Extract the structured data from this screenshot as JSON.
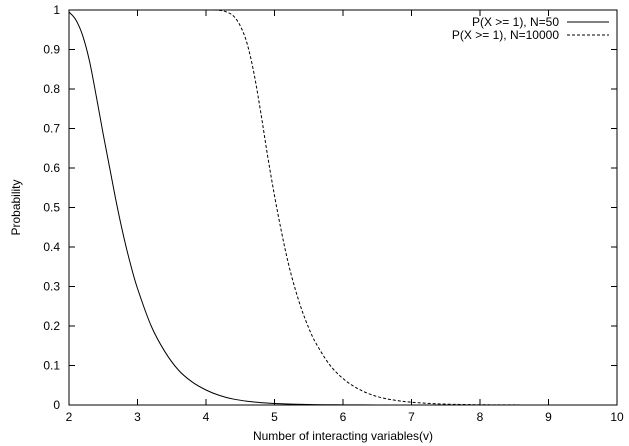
{
  "chart_data": {
    "type": "line",
    "title": "",
    "xlabel": "Number of interacting variables(v)",
    "ylabel": "Probability",
    "xlim": [
      2,
      10
    ],
    "ylim": [
      0,
      1
    ],
    "xticks": [
      2,
      3,
      4,
      5,
      6,
      7,
      8,
      9,
      10
    ],
    "yticks": [
      0,
      0.1,
      0.2,
      0.3,
      0.4,
      0.5,
      0.6,
      0.7,
      0.8,
      0.9,
      1
    ],
    "grid": false,
    "legend_position": "top-right",
    "series": [
      {
        "name": "P(X >= 1), N=50",
        "style": "solid",
        "color": "#000000",
        "x": [
          2.0,
          2.1,
          2.2,
          2.3,
          2.4,
          2.5,
          2.6,
          2.7,
          2.8,
          2.9,
          3.0,
          3.2,
          3.4,
          3.6,
          3.8,
          4.0,
          4.2,
          4.4,
          4.6,
          4.8,
          5.0,
          5.5,
          6.0,
          6.5,
          7.0,
          8.0,
          9.0,
          10.0
        ],
        "y": [
          0.995,
          0.975,
          0.935,
          0.87,
          0.78,
          0.685,
          0.595,
          0.505,
          0.425,
          0.355,
          0.295,
          0.2,
          0.135,
          0.088,
          0.058,
          0.038,
          0.024,
          0.015,
          0.0095,
          0.006,
          0.0038,
          0.0012,
          0.0004,
          0.0001,
          0.0,
          0.0,
          0.0,
          0.0
        ]
      },
      {
        "name": "P(X >= 1), N=10000",
        "style": "dashed",
        "color": "#000000",
        "x": [
          2.0,
          3.0,
          4.0,
          4.2,
          4.3,
          4.4,
          4.5,
          4.6,
          4.7,
          4.8,
          4.9,
          5.0,
          5.1,
          5.2,
          5.3,
          5.4,
          5.5,
          5.6,
          5.8,
          6.0,
          6.2,
          6.4,
          6.6,
          6.8,
          7.0,
          7.4,
          7.8,
          8.2,
          9.0,
          10.0
        ],
        "y": [
          1.0,
          1.0,
          1.0,
          0.999,
          0.995,
          0.985,
          0.96,
          0.915,
          0.84,
          0.74,
          0.63,
          0.53,
          0.44,
          0.36,
          0.295,
          0.24,
          0.195,
          0.158,
          0.103,
          0.067,
          0.043,
          0.027,
          0.017,
          0.011,
          0.007,
          0.0028,
          0.0011,
          0.0004,
          0.0,
          0.0
        ]
      }
    ]
  }
}
